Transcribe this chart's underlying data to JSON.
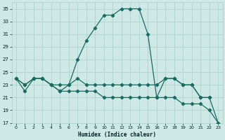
{
  "xlabel": "Humidex (Indice chaleur)",
  "bg_color": "#cde8e5",
  "grid_color": "#aacfcc",
  "line_color": "#1a6b60",
  "xlim": [
    -0.5,
    23.5
  ],
  "ylim": [
    17,
    36
  ],
  "yticks": [
    17,
    19,
    21,
    23,
    25,
    27,
    29,
    31,
    33,
    35
  ],
  "xticks": [
    0,
    1,
    2,
    3,
    4,
    5,
    6,
    7,
    8,
    9,
    10,
    11,
    12,
    13,
    14,
    15,
    16,
    17,
    18,
    19,
    20,
    21,
    22,
    23
  ],
  "line1_x": [
    0,
    1,
    2,
    3,
    4,
    5,
    6,
    7,
    8,
    9,
    10,
    11,
    12,
    13,
    14,
    15,
    16,
    17,
    18,
    19,
    20,
    21,
    22
  ],
  "line1_y": [
    24,
    22,
    24,
    24,
    23,
    22,
    23,
    27,
    30,
    32,
    34,
    34,
    35,
    35,
    35,
    31,
    21,
    24,
    24,
    23,
    23,
    21,
    21
  ],
  "line2_x": [
    0,
    1,
    2,
    3,
    4,
    5,
    6,
    7,
    8,
    9,
    10,
    11,
    12,
    13,
    14,
    15,
    16,
    17,
    18,
    19,
    20,
    21,
    22,
    23
  ],
  "line2_y": [
    24,
    23,
    24,
    24,
    23,
    23,
    23,
    24,
    23,
    23,
    23,
    23,
    23,
    23,
    23,
    23,
    23,
    24,
    24,
    23,
    23,
    21,
    21,
    17
  ],
  "line3_x": [
    0,
    1,
    2,
    3,
    4,
    5,
    6,
    7,
    8,
    9,
    10,
    11,
    12,
    13,
    14,
    15,
    16,
    17,
    18,
    19,
    20,
    21,
    22,
    23
  ],
  "line3_y": [
    24,
    23,
    24,
    24,
    23,
    22,
    22,
    22,
    22,
    22,
    21,
    21,
    21,
    21,
    21,
    21,
    21,
    21,
    21,
    20,
    20,
    20,
    19,
    17
  ]
}
